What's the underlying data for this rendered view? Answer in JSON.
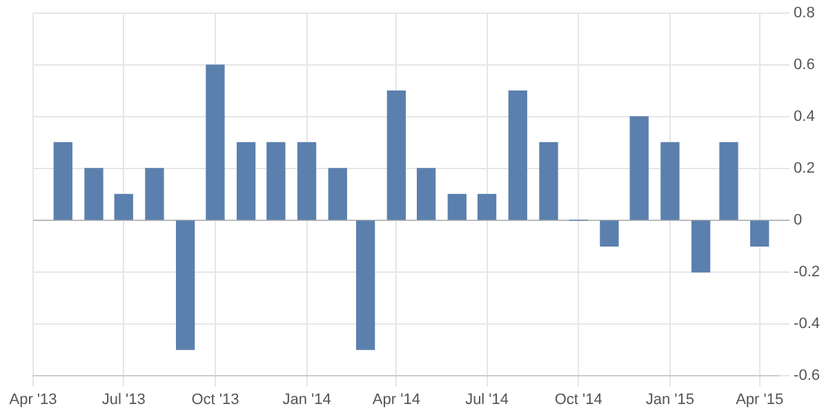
{
  "chart_data": {
    "type": "bar",
    "x": [
      "2013-05",
      "2013-06",
      "2013-07",
      "2013-08",
      "2013-09",
      "2013-10",
      "2013-11",
      "2013-12",
      "2014-01",
      "2014-02",
      "2014-03",
      "2014-04",
      "2014-05",
      "2014-06",
      "2014-07",
      "2014-08",
      "2014-09",
      "2014-10",
      "2014-11",
      "2014-12",
      "2015-01",
      "2015-02",
      "2015-03",
      "2015-04"
    ],
    "values": [
      0.3,
      0.2,
      0.1,
      0.2,
      -0.5,
      0.6,
      0.3,
      0.3,
      0.3,
      0.2,
      -0.5,
      0.5,
      0.2,
      0.1,
      0.1,
      0.5,
      0.3,
      0,
      -0.1,
      0.4,
      0.3,
      -0.2,
      0.3,
      -0.1
    ],
    "color": "#5b80ad",
    "xlim": [
      "2013-04",
      "2015-04-20"
    ],
    "xticks": [
      {
        "value": "2013-04",
        "label": "Apr '13"
      },
      {
        "value": "2013-07",
        "label": "Jul '13"
      },
      {
        "value": "2013-10",
        "label": "Oct '13"
      },
      {
        "value": "2014-01",
        "label": "Jan '14"
      },
      {
        "value": "2014-04",
        "label": "Apr '14"
      },
      {
        "value": "2014-07",
        "label": "Jul '14"
      },
      {
        "value": "2014-10",
        "label": "Oct '14"
      },
      {
        "value": "2015-01",
        "label": "Jan '15"
      },
      {
        "value": "2015-04",
        "label": "Apr '15"
      }
    ],
    "ylim": [
      -0.6,
      0.8
    ],
    "yticks": [
      -0.6,
      -0.4,
      -0.2,
      0,
      0.2,
      0.4,
      0.6,
      0.8
    ],
    "grid": true
  }
}
